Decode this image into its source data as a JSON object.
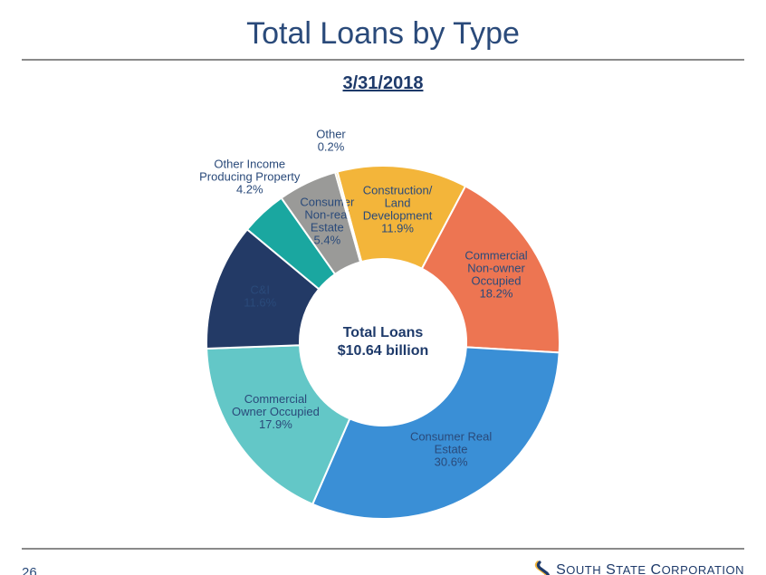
{
  "title": "Total Loans by Type",
  "date": "3/31/2018",
  "page_number": "26",
  "brand": "South State Corporation",
  "center": {
    "line1": "Total Loans",
    "line2": "$10.64 billion"
  },
  "chart": {
    "type": "donut",
    "outer_radius": 195,
    "inner_radius": 92,
    "background_color": "#ffffff",
    "start_angle_deg": -15,
    "slices": [
      {
        "label": "Construction/\nLand\nDevelopment",
        "pct": 11.9,
        "color": "#f3b53a",
        "label_pos": "inside",
        "text_color": "#1e3a6a"
      },
      {
        "label": "Commercial\nNon-owner\nOccupied",
        "pct": 18.2,
        "color": "#ed7552",
        "label_pos": "inside",
        "text_color": "#1e3a6a"
      },
      {
        "label": "Consumer Real\nEstate",
        "pct": 30.6,
        "color": "#3a8fd6",
        "label_pos": "inside",
        "text_color": "#ffffff"
      },
      {
        "label": "Commercial\nOwner Occupied",
        "pct": 17.9,
        "color": "#63c7c7",
        "label_pos": "inside",
        "text_color": "#1e3a6a"
      },
      {
        "label": "C&I",
        "pct": 11.6,
        "color": "#233a66",
        "label_pos": "inside",
        "text_color": "#ffffff"
      },
      {
        "label": "Other Income\nProducing Property",
        "pct": 4.2,
        "color": "#1aa7a0",
        "label_pos": "outside",
        "text_color": "#1e3a6a"
      },
      {
        "label": "Consumer\nNon-real\nEstate",
        "pct": 5.4,
        "color": "#9a9a98",
        "label_pos": "inside",
        "text_color": "#ffffff"
      },
      {
        "label": "Other",
        "pct": 0.2,
        "color": "#f6d77a",
        "label_pos": "outside",
        "text_color": "#1e3a6a"
      }
    ]
  },
  "colors": {
    "title": "#2a4a7a",
    "rule": "#8a8a8a",
    "brand_accent1": "#f3b53a",
    "brand_accent2": "#1e3a6a"
  }
}
